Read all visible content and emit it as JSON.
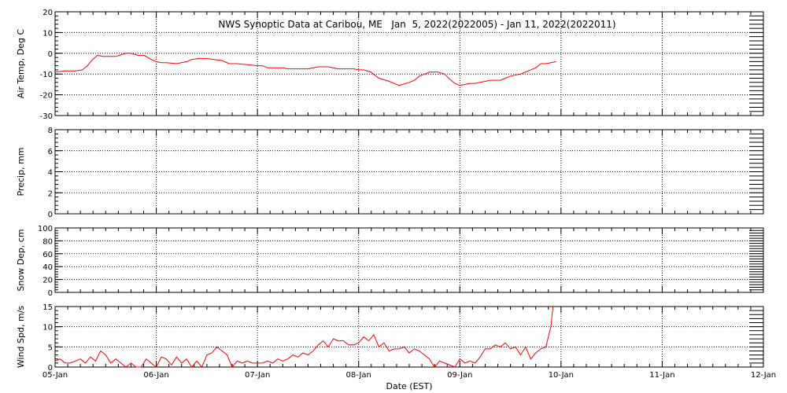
{
  "chart_data": {
    "title": "NWS Synoptic Data at Caribou, ME   Jan  5, 2022(2022005) - Jan 11, 2022(2022011)",
    "xlabel": "Date (EST)",
    "x_range": [
      0,
      7
    ],
    "x_ticks": [
      {
        "x": 0,
        "label": "05-Jan"
      },
      {
        "x": 1,
        "label": "06-Jan"
      },
      {
        "x": 2,
        "label": "07-Jan"
      },
      {
        "x": 3,
        "label": "08-Jan"
      },
      {
        "x": 4,
        "label": "09-Jan"
      },
      {
        "x": 5,
        "label": "10-Jan"
      },
      {
        "x": 6,
        "label": "11-Jan"
      },
      {
        "x": 7,
        "label": "12-Jan"
      }
    ],
    "colors": {
      "series": "#ff0000",
      "axes": "#000000",
      "grid": "#000000"
    },
    "grid": true,
    "panels": [
      {
        "type": "line",
        "ylabel": "Air Temp, Deg C",
        "ylim": [
          -30,
          20
        ],
        "yticks": [
          20,
          10,
          0,
          -10,
          -20,
          -30
        ],
        "series": [
          {
            "x": [
              0,
              0.1,
              0.2,
              0.27,
              0.32,
              0.37,
              0.42,
              0.47,
              0.52,
              0.6,
              0.7,
              0.75,
              0.82,
              0.88,
              0.95,
              1.0,
              1.05,
              1.1,
              1.2,
              1.3,
              1.35,
              1.42,
              1.5,
              1.57,
              1.65,
              1.72,
              1.8,
              1.9,
              2.0,
              2.05,
              2.1,
              2.2,
              2.25,
              2.3,
              2.4,
              2.5,
              2.55,
              2.6,
              2.7,
              2.8,
              2.9,
              2.95,
              3.0,
              3.05,
              3.12,
              3.2,
              3.3,
              3.4,
              3.5,
              3.55,
              3.6,
              3.7,
              3.78,
              3.85,
              3.9,
              3.95,
              4.0,
              4.05,
              4.1,
              4.15,
              4.2,
              4.3,
              4.4,
              4.45,
              4.5,
              4.6,
              4.65,
              4.7,
              4.75,
              4.8,
              4.85,
              4.9,
              4.95
            ],
            "y": [
              -9,
              -8.5,
              -8.5,
              -8,
              -6,
              -3,
              -1,
              -1.5,
              -1.5,
              -1.5,
              0,
              0,
              -1,
              -1,
              -3,
              -4,
              -4.5,
              -4.5,
              -5,
              -4,
              -3,
              -2.5,
              -2.5,
              -3,
              -3.5,
              -5,
              -5,
              -5.5,
              -6,
              -6,
              -7,
              -7,
              -7,
              -7.5,
              -7.5,
              -7.5,
              -7,
              -6.5,
              -6.5,
              -7.5,
              -7.5,
              -7.5,
              -8,
              -8,
              -9,
              -12,
              -13.5,
              -15.5,
              -14,
              -13,
              -11,
              -9,
              -9,
              -10,
              -12.5,
              -14.5,
              -15.5,
              -15,
              -14.5,
              -14.5,
              -14,
              -13,
              -13,
              -12,
              -11,
              -10,
              -9,
              -8,
              -7,
              -5,
              -5,
              -4.5,
              -4
            ]
          }
        ]
      },
      {
        "type": "line",
        "ylabel": "Precip, mm",
        "ylim": [
          0,
          8
        ],
        "yticks": [
          8,
          6,
          4,
          2,
          0
        ],
        "series": []
      },
      {
        "type": "line",
        "ylabel": "Snow Dep, cm",
        "ylim": [
          0,
          100
        ],
        "yticks": [
          100,
          80,
          60,
          40,
          20,
          0
        ],
        "series": []
      },
      {
        "type": "line",
        "ylabel": "Wind Spd, m/s",
        "ylim": [
          0,
          15
        ],
        "yticks": [
          15,
          10,
          5,
          0
        ],
        "series": [
          {
            "x": [
              0,
              0.05,
              0.1,
              0.15,
              0.2,
              0.25,
              0.3,
              0.35,
              0.4,
              0.45,
              0.5,
              0.55,
              0.6,
              0.65,
              0.7,
              0.75,
              0.8,
              0.85,
              0.9,
              0.95,
              1.0,
              1.05,
              1.1,
              1.15,
              1.2,
              1.25,
              1.3,
              1.35,
              1.4,
              1.45,
              1.5,
              1.55,
              1.6,
              1.65,
              1.7,
              1.75,
              1.8,
              1.85,
              1.9,
              1.95,
              2.0,
              2.05,
              2.1,
              2.15,
              2.2,
              2.25,
              2.3,
              2.35,
              2.4,
              2.45,
              2.5,
              2.55,
              2.6,
              2.65,
              2.7,
              2.75,
              2.8,
              2.85,
              2.9,
              2.95,
              3.0,
              3.05,
              3.1,
              3.15,
              3.2,
              3.25,
              3.3,
              3.35,
              3.4,
              3.45,
              3.5,
              3.55,
              3.6,
              3.65,
              3.7,
              3.75,
              3.8,
              3.85,
              3.9,
              3.95,
              4.0,
              4.05,
              4.1,
              4.15,
              4.2,
              4.25,
              4.3,
              4.35,
              4.4,
              4.45,
              4.5,
              4.55,
              4.6,
              4.65,
              4.7,
              4.75,
              4.8,
              4.85,
              4.9,
              4.92
            ],
            "y": [
              1.5,
              2,
              1,
              1,
              1.5,
              2,
              1,
              2.5,
              1.5,
              4,
              3,
              1,
              2,
              1,
              0,
              1,
              0,
              0,
              2,
              1,
              0,
              2.5,
              2,
              0.5,
              2.5,
              1,
              2,
              0,
              1.5,
              0,
              3,
              3.5,
              5,
              4,
              3,
              0,
              1.5,
              1,
              1.5,
              1,
              1,
              1,
              1.5,
              1,
              2,
              1.5,
              2,
              3,
              2.5,
              3.5,
              3,
              4,
              5.5,
              6.5,
              5,
              7,
              6.5,
              6.5,
              5.5,
              5.5,
              6,
              7.5,
              6.5,
              8,
              5,
              6,
              4,
              4.5,
              4.5,
              5,
              3.5,
              4.5,
              4,
              3,
              2,
              0,
              1.5,
              1,
              0.5,
              0,
              2,
              1,
              1.5,
              1,
              2.5,
              4.5,
              4.5,
              5.5,
              5,
              6,
              4.5,
              5,
              3,
              5,
              2,
              3.5,
              4.5,
              5,
              10,
              15
            ]
          }
        ]
      }
    ]
  }
}
